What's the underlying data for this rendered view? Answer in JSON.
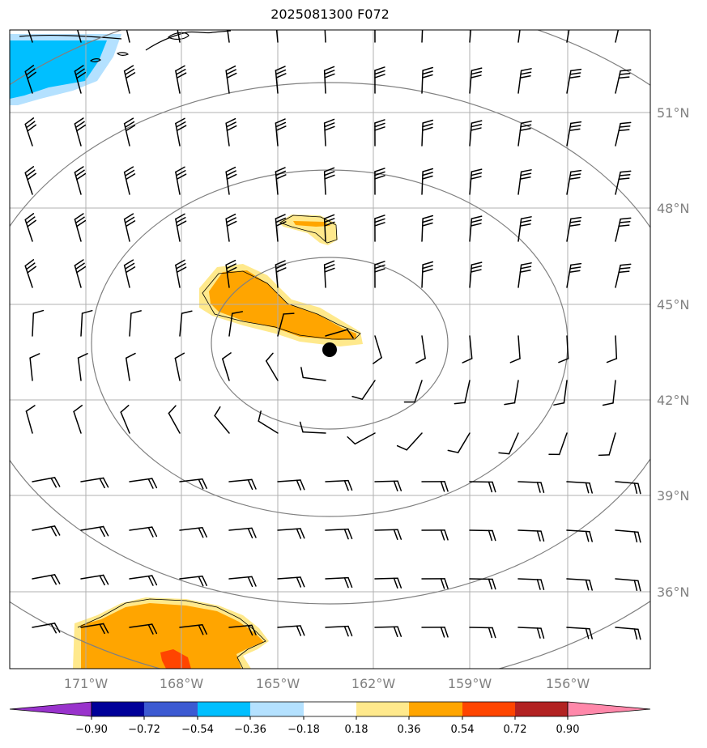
{
  "title": "2025081300 F072",
  "map": {
    "lat_labels": [
      "51°N",
      "48°N",
      "45°N",
      "42°N",
      "39°N",
      "36°N"
    ],
    "lon_labels": [
      "171°W",
      "168°W",
      "165°W",
      "162°W",
      "159°W",
      "156°W"
    ],
    "storm_center": {
      "lon": -163.4,
      "lat": 43.6
    },
    "range_rings": 4,
    "colors": {
      "frame": "#000000",
      "grid": "#b0b0b0",
      "ring": "#808080",
      "barb": "#000000"
    }
  },
  "colorbar": {
    "labels": [
      "−0.90",
      "−0.72",
      "−0.54",
      "−0.36",
      "−0.18",
      "0.18",
      "0.36",
      "0.54",
      "0.72",
      "0.90"
    ],
    "colors": [
      "#9933cc",
      "#000099",
      "#3c5ad2",
      "#00bfff",
      "#b4e1ff",
      "#ffffff",
      "#ffe98c",
      "#ffa500",
      "#ff4500",
      "#b22222",
      "#ff88aa"
    ]
  }
}
